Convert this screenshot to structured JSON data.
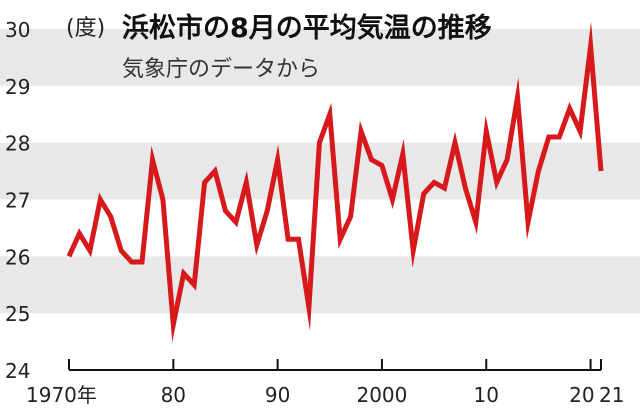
{
  "chart_data": {
    "type": "line",
    "title": "浜松市の8月の平均気温の推移",
    "subtitle": "気象庁のデータから",
    "ylabel": "(度)",
    "ylim": [
      24,
      30
    ],
    "yticks": [
      "24",
      "25",
      "26",
      "27",
      "28",
      "29",
      "30"
    ],
    "xticks": [
      {
        "x": 1970,
        "label": "1970年"
      },
      {
        "x": 1980,
        "label": "80"
      },
      {
        "x": 1990,
        "label": "90"
      },
      {
        "x": 2000,
        "label": "2000"
      },
      {
        "x": 2010,
        "label": "10"
      },
      {
        "x": 2020,
        "label": "20"
      },
      {
        "x": 2021,
        "label": "21"
      }
    ],
    "colors": {
      "line": "#d7191c",
      "band": "#e8e8e8",
      "axis": "#111111"
    },
    "series": [
      {
        "x": [
          1970,
          1971,
          1972,
          1973,
          1974,
          1975,
          1976,
          1977,
          1978,
          1979,
          1980,
          1981,
          1982,
          1983,
          1984,
          1985,
          1986,
          1987,
          1988,
          1989,
          1990,
          1991,
          1992,
          1993,
          1994,
          1995,
          1996,
          1997,
          1998,
          1999,
          2000,
          2001,
          2002,
          2003,
          2004,
          2005,
          2006,
          2007,
          2008,
          2009,
          2010,
          2011,
          2012,
          2013,
          2014,
          2015,
          2016,
          2017,
          2018,
          2019,
          2020,
          2021
        ],
        "values": [
          26.0,
          26.4,
          26.1,
          27.0,
          26.7,
          26.1,
          25.9,
          25.9,
          27.7,
          27.0,
          24.8,
          25.7,
          25.5,
          27.3,
          27.5,
          26.8,
          26.6,
          27.3,
          26.2,
          26.8,
          27.7,
          26.3,
          26.3,
          25.1,
          28.0,
          28.5,
          26.3,
          26.7,
          28.2,
          27.7,
          27.6,
          27.0,
          27.8,
          26.1,
          27.1,
          27.3,
          27.2,
          28.0,
          27.2,
          26.6,
          28.2,
          27.3,
          27.7,
          28.8,
          26.6,
          27.5,
          28.1,
          28.1,
          28.6,
          28.2,
          29.7,
          27.5
        ]
      }
    ]
  }
}
